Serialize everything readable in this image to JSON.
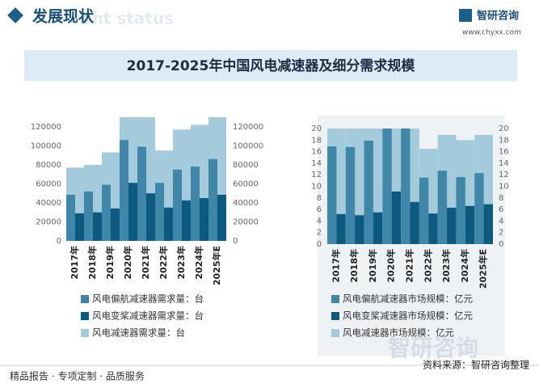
{
  "header": {
    "title": "发展现状",
    "watermark": "ent status",
    "logo": "智研咨询",
    "url": "www.chyxx.com"
  },
  "title": "2017-2025年中国风电减速器及细分需求规模",
  "chart_data": [
    {
      "type": "bar",
      "categories": [
        "2017年",
        "2018年",
        "2019年",
        "2020年",
        "2021年",
        "2022年",
        "2023年",
        "2024年",
        "2025年E"
      ],
      "series": [
        {
          "name": "风电偏航减速器需求量：台",
          "color": "#3f86a8",
          "values": [
            48500,
            52000,
            59000,
            106000,
            99000,
            61000,
            75000,
            78000,
            86000
          ]
        },
        {
          "name": "风电变桨减速器需求量：台",
          "color": "#0c5a80",
          "values": [
            29000,
            30000,
            34000,
            61000,
            50000,
            35000,
            42500,
            45000,
            48500
          ]
        },
        {
          "name": "风电减速器需求量：台",
          "color": "#a3cbdc",
          "values": [
            77000,
            80000,
            93000,
            130000,
            130000,
            95000,
            117000,
            122000,
            130000
          ]
        }
      ],
      "ylim": [
        0,
        130000
      ],
      "yticks": [
        0,
        20000,
        40000,
        60000,
        80000,
        100000,
        120000
      ],
      "y2lim": [
        0,
        130000
      ],
      "y2ticks": [
        0,
        20000,
        40000,
        60000,
        80000,
        100000,
        120000
      ]
    },
    {
      "type": "bar",
      "categories": [
        "2017年",
        "2018年",
        "2019年",
        "2020年",
        "2021年",
        "2022年",
        "2023年",
        "2024年",
        "2025年E"
      ],
      "series": [
        {
          "name": "风电偏航减速器市场规模：亿元",
          "color": "#3f86a8",
          "values": [
            16.9,
            16.8,
            17.9,
            20,
            20,
            11.5,
            12.7,
            11.6,
            12.3
          ]
        },
        {
          "name": "风电变桨减速器市场规模：亿元",
          "color": "#0c5a80",
          "values": [
            5.2,
            5.0,
            5.5,
            9.1,
            7.3,
            5.3,
            6.3,
            6.6,
            6.9
          ]
        },
        {
          "name": "风电减速器市场规模：亿元",
          "color": "#a3cbdc",
          "values": [
            20,
            20,
            20,
            20,
            20,
            16.5,
            18.9,
            18,
            18.9
          ]
        }
      ],
      "ylim": [
        0,
        20
      ],
      "yticks": [
        0,
        2,
        4,
        6,
        8,
        10,
        12,
        14,
        16,
        18,
        20
      ],
      "y2lim": [
        0,
        20
      ],
      "y2ticks": [
        0,
        2,
        4,
        6,
        8,
        10,
        12,
        14,
        16,
        18,
        20
      ]
    }
  ],
  "watermark": "智研咨询",
  "footer": {
    "left": "精品报告 · 专项定制 · 品质服务",
    "source": "资料来源：智研咨询整理"
  }
}
